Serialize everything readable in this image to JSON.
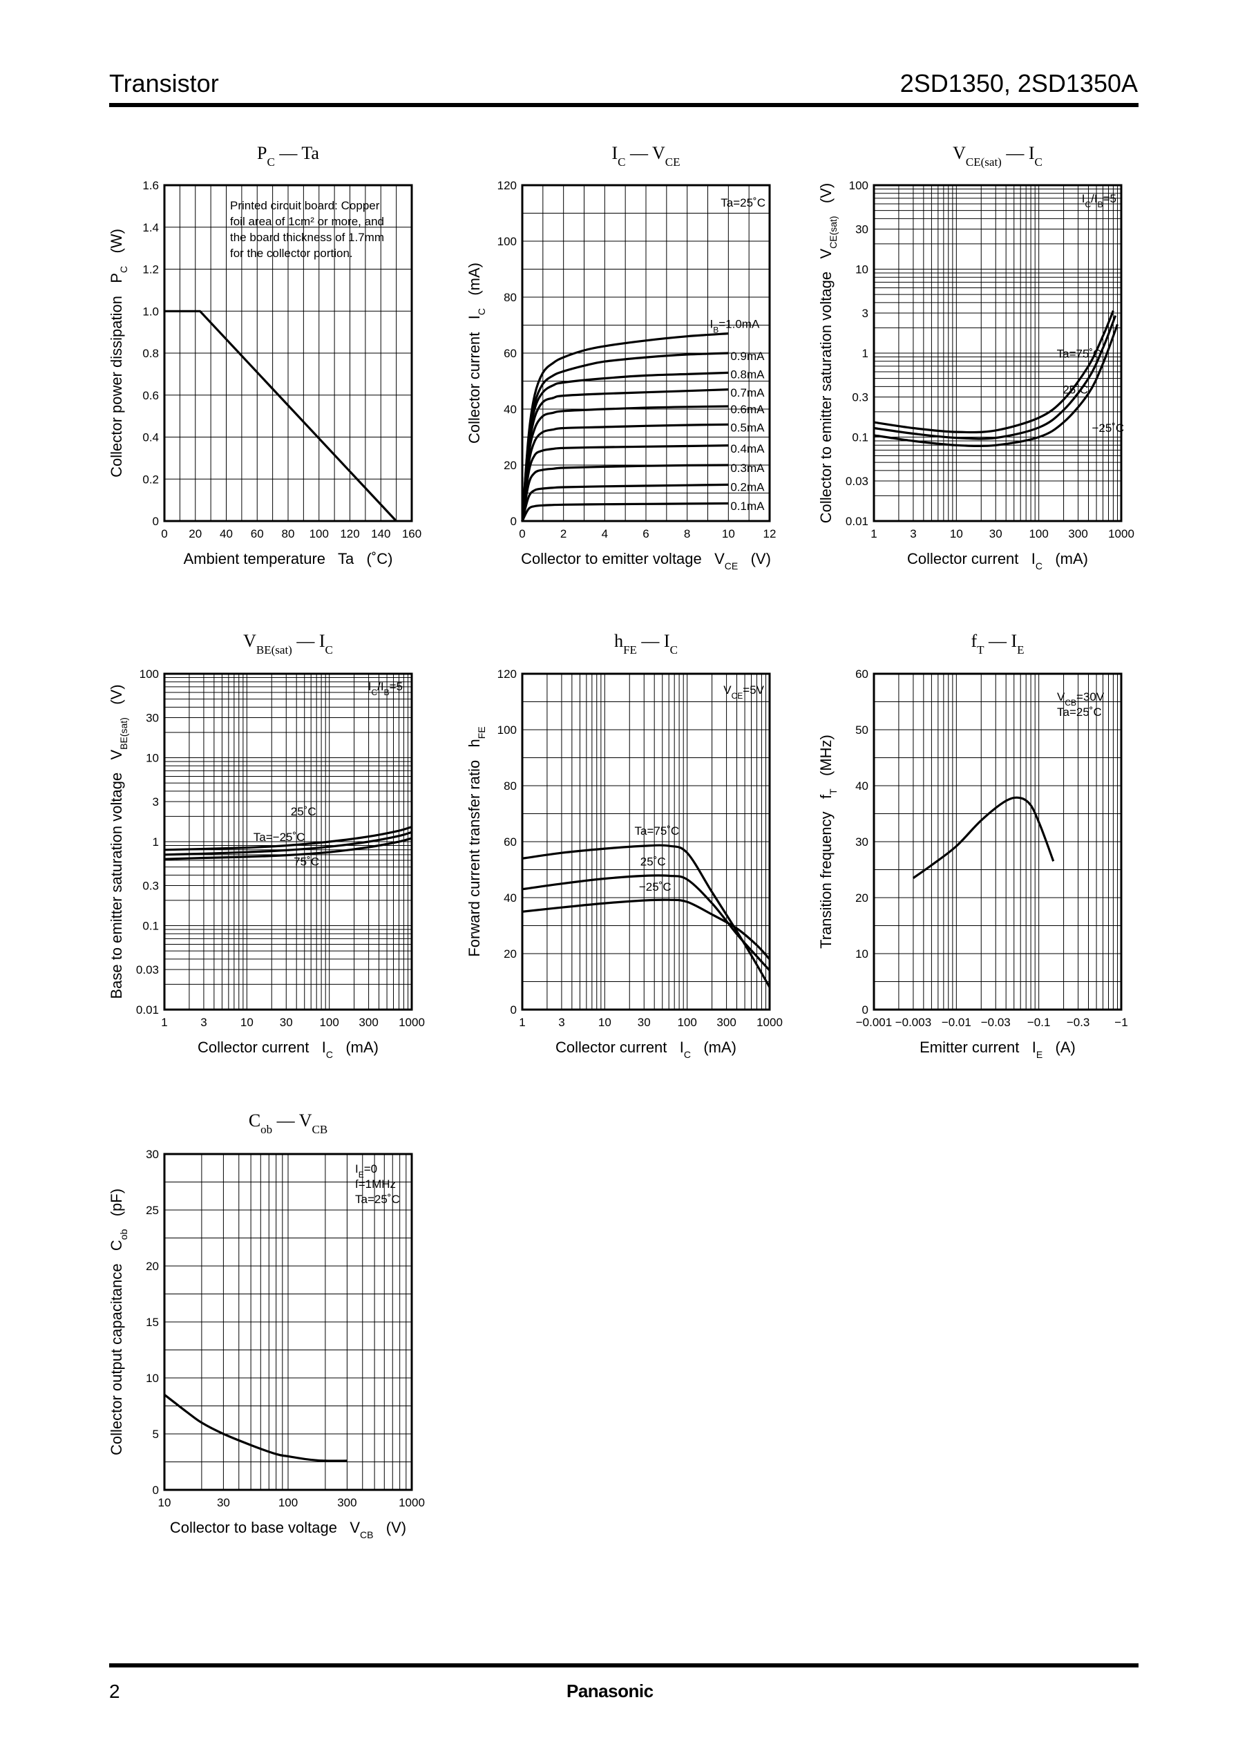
{
  "header": {
    "category": "Transistor",
    "part_numbers": "2SD1350, 2SD1350A"
  },
  "footer": {
    "page_number": "2",
    "brand": "Panasonic"
  },
  "chart_data": [
    {
      "id": "pc-ta",
      "type": "line",
      "title": "P_C — Ta",
      "xlabel": "Ambient temperature   Ta   (˚C)",
      "ylabel": "Collector power dissipation   P_C   (W)",
      "xscale": "linear",
      "yscale": "linear",
      "xlim": [
        0,
        160
      ],
      "ylim": [
        0,
        1.6
      ],
      "xticks": [
        0,
        20,
        40,
        60,
        80,
        100,
        120,
        140,
        160
      ],
      "yticks": [
        0,
        0.2,
        0.4,
        0.6,
        0.8,
        1.0,
        1.2,
        1.4,
        1.6
      ],
      "xtick_labels": [
        "0",
        "20",
        "40",
        "60",
        "80",
        "100",
        "120",
        "140",
        "160"
      ],
      "ytick_labels": [
        "0",
        "0.2",
        "0.4",
        "0.6",
        "0.8",
        "1.0",
        "1.2",
        "1.4",
        "1.6"
      ],
      "xgrid": [
        10,
        20,
        30,
        40,
        50,
        60,
        70,
        80,
        90,
        100,
        110,
        120,
        130,
        140,
        150
      ],
      "ygrid": [
        0.2,
        0.4,
        0.6,
        0.8,
        1.0,
        1.2,
        1.4
      ],
      "note": [
        "Printed circuit board: Copper",
        "foil area of 1cm² or more, and",
        "the board thickness of 1.7mm",
        "for the collector portion."
      ],
      "series": [
        {
          "name": "P_C",
          "x": [
            0,
            23,
            150
          ],
          "y": [
            1.0,
            1.0,
            0
          ]
        }
      ],
      "labels": []
    },
    {
      "id": "ic-vce",
      "type": "line",
      "title": "I_C — V_CE",
      "xlabel": "Collector to emitter voltage   V_CE   (V)",
      "ylabel": "Collector current   I_C   (mA)",
      "xscale": "linear",
      "yscale": "linear",
      "xlim": [
        0,
        12
      ],
      "ylim": [
        0,
        120
      ],
      "xticks": [
        0,
        2,
        4,
        6,
        8,
        10,
        12
      ],
      "yticks": [
        0,
        20,
        40,
        60,
        80,
        100,
        120
      ],
      "xtick_labels": [
        "0",
        "2",
        "4",
        "6",
        "8",
        "10",
        "12"
      ],
      "ytick_labels": [
        "0",
        "20",
        "40",
        "60",
        "80",
        "100",
        "120"
      ],
      "xgrid": [
        1,
        2,
        3,
        4,
        5,
        6,
        7,
        8,
        9,
        10,
        11
      ],
      "ygrid": [
        10,
        20,
        30,
        40,
        50,
        60,
        70,
        80,
        90,
        100,
        110
      ],
      "note": [
        "Ta=25˚C"
      ],
      "series": [
        {
          "name": "I_B=1.0mA",
          "x": [
            0,
            0.3,
            0.6,
            1.0,
            1.5,
            2,
            3,
            4,
            6,
            8,
            10
          ],
          "y": [
            0,
            30,
            45,
            53,
            56.5,
            58.5,
            61,
            62.5,
            64.5,
            66,
            67
          ]
        },
        {
          "name": "0.9mA",
          "x": [
            0,
            0.3,
            0.6,
            1.0,
            1.5,
            2,
            3,
            4,
            6,
            8,
            10
          ],
          "y": [
            0,
            29,
            42,
            49,
            52,
            53.5,
            55.5,
            57,
            58.5,
            59.5,
            60
          ]
        },
        {
          "name": "0.8mA",
          "x": [
            0,
            0.3,
            0.6,
            1.0,
            1.5,
            2,
            4,
            6,
            8,
            10
          ],
          "y": [
            0,
            27,
            40,
            46,
            48.5,
            49.5,
            51,
            52,
            52.5,
            53
          ]
        },
        {
          "name": "0.7mA",
          "x": [
            0,
            0.3,
            0.6,
            1.0,
            1.5,
            2,
            4,
            6,
            8,
            10
          ],
          "y": [
            0,
            25,
            37,
            42.5,
            44,
            44.8,
            45.5,
            46,
            46.5,
            47
          ]
        },
        {
          "name": "0.6mA",
          "x": [
            0,
            0.3,
            0.6,
            1.0,
            1.5,
            2,
            4,
            6,
            8,
            10
          ],
          "y": [
            0,
            23,
            33,
            37.5,
            38.7,
            39.3,
            40,
            40.5,
            40.8,
            41
          ]
        },
        {
          "name": "0.5mA",
          "x": [
            0,
            0.3,
            0.6,
            1.0,
            1.5,
            2,
            4,
            6,
            8,
            10
          ],
          "y": [
            0,
            20,
            28.5,
            31.8,
            32.7,
            33.2,
            33.6,
            34,
            34.3,
            34.5
          ]
        },
        {
          "name": "0.4mA",
          "x": [
            0,
            0.3,
            0.6,
            1.0,
            1.5,
            2,
            4,
            6,
            8,
            10
          ],
          "y": [
            0,
            17,
            23.5,
            25.2,
            25.8,
            26.1,
            26.4,
            26.6,
            26.8,
            27
          ]
        },
        {
          "name": "0.3mA",
          "x": [
            0,
            0.3,
            0.6,
            1.0,
            1.5,
            2,
            4,
            6,
            8,
            10
          ],
          "y": [
            0,
            13,
            17.2,
            18.3,
            18.7,
            19,
            19.4,
            19.7,
            19.9,
            20
          ]
        },
        {
          "name": "0.2mA",
          "x": [
            0,
            0.3,
            0.6,
            1.0,
            1.5,
            2,
            4,
            6,
            8,
            10
          ],
          "y": [
            0,
            8.5,
            11,
            11.6,
            11.9,
            12.1,
            12.4,
            12.6,
            12.8,
            13
          ]
        },
        {
          "name": "0.1mA",
          "x": [
            0,
            0.3,
            0.6,
            1.0,
            1.5,
            2,
            4,
            6,
            8,
            10
          ],
          "y": [
            0,
            4.3,
            5.3,
            5.6,
            5.75,
            5.85,
            6,
            6.1,
            6.2,
            6.3
          ]
        }
      ],
      "labels": [
        {
          "text": "I_B=1.0mA",
          "x": 9.1,
          "y": 69
        },
        {
          "text": "0.9mA",
          "x": 10.1,
          "y": 57.5
        },
        {
          "text": "0.8mA",
          "x": 10.1,
          "y": 51
        },
        {
          "text": "0.7mA",
          "x": 10.1,
          "y": 44.5
        },
        {
          "text": "0.6mA",
          "x": 10.1,
          "y": 38.5
        },
        {
          "text": "0.5mA",
          "x": 10.1,
          "y": 32
        },
        {
          "text": "0.4mA",
          "x": 10.1,
          "y": 24.5
        },
        {
          "text": "0.3mA",
          "x": 10.1,
          "y": 17.5
        },
        {
          "text": "0.2mA",
          "x": 10.1,
          "y": 10.8
        },
        {
          "text": "0.1mA",
          "x": 10.1,
          "y": 4
        }
      ]
    },
    {
      "id": "vcesat-ic",
      "type": "line",
      "title": "V_CE(sat) — I_C",
      "xlabel": "Collector current   I_C   (mA)",
      "ylabel": "Collector to emitter saturation voltage   V_CE(sat)   (V)",
      "xscale": "log",
      "yscale": "log",
      "xlim": [
        1,
        1000
      ],
      "ylim": [
        0.01,
        100
      ],
      "xticks": [
        1,
        3,
        10,
        30,
        100,
        300,
        1000
      ],
      "yticks": [
        0.01,
        0.03,
        0.1,
        0.3,
        1,
        3,
        10,
        30,
        100
      ],
      "xtick_labels": [
        "1",
        "3",
        "10",
        "30",
        "100",
        "300",
        "1000"
      ],
      "ytick_labels": [
        "0.01",
        "0.03",
        "0.1",
        "0.3",
        "1",
        "3",
        "10",
        "30",
        "100"
      ],
      "xgrid": "log-minor",
      "ygrid": "log-minor",
      "note": [
        "I_C/I_B=5"
      ],
      "series": [
        {
          "name": "Ta=75˚C",
          "x": [
            1,
            3,
            10,
            30,
            100,
            200,
            400,
            600,
            800
          ],
          "y": [
            0.15,
            0.128,
            0.115,
            0.12,
            0.17,
            0.28,
            0.7,
            1.6,
            3.2
          ]
        },
        {
          "name": "25˚C",
          "x": [
            1,
            3,
            10,
            30,
            100,
            200,
            400,
            600,
            850
          ],
          "y": [
            0.128,
            0.11,
            0.098,
            0.098,
            0.13,
            0.21,
            0.5,
            1.15,
            2.8
          ]
        },
        {
          "name": "−25˚C",
          "x": [
            1,
            3,
            10,
            30,
            100,
            200,
            400,
            600,
            900
          ],
          "y": [
            0.105,
            0.09,
            0.08,
            0.08,
            0.1,
            0.15,
            0.33,
            0.75,
            2.2
          ]
        }
      ],
      "labels": [
        {
          "text": "Ta=75˚C",
          "x": 165,
          "y": 0.88
        },
        {
          "text": "25˚C",
          "x": 195,
          "y": 0.33
        },
        {
          "text": "−25˚C",
          "x": 440,
          "y": 0.115
        }
      ]
    },
    {
      "id": "vbesat-ic",
      "type": "line",
      "title": "V_BE(sat) — I_C",
      "xlabel": "Collector current   I_C   (mA)",
      "ylabel": "Base to emitter saturation voltage   V_BE(sat)   (V)",
      "xscale": "log",
      "yscale": "log",
      "xlim": [
        1,
        1000
      ],
      "ylim": [
        0.01,
        100
      ],
      "xticks": [
        1,
        3,
        10,
        30,
        100,
        300,
        1000
      ],
      "yticks": [
        0.01,
        0.03,
        0.1,
        0.3,
        1,
        3,
        10,
        30,
        100
      ],
      "xtick_labels": [
        "1",
        "3",
        "10",
        "30",
        "100",
        "300",
        "1000"
      ],
      "ytick_labels": [
        "0.01",
        "0.03",
        "0.1",
        "0.3",
        "1",
        "3",
        "10",
        "30",
        "100"
      ],
      "xgrid": "log-minor",
      "ygrid": "log-minor",
      "note": [
        "I_C/I_B=5"
      ],
      "series": [
        {
          "name": "Ta=−25˚C",
          "x": [
            1,
            3,
            10,
            30,
            100,
            300,
            700,
            1000
          ],
          "y": [
            0.8,
            0.82,
            0.85,
            0.9,
            1.0,
            1.15,
            1.35,
            1.5
          ]
        },
        {
          "name": "25˚C",
          "x": [
            1,
            3,
            10,
            30,
            100,
            300,
            700,
            1000
          ],
          "y": [
            0.7,
            0.72,
            0.75,
            0.79,
            0.87,
            1.0,
            1.17,
            1.3
          ]
        },
        {
          "name": "75˚C",
          "x": [
            1,
            3,
            10,
            30,
            100,
            300,
            700,
            1000
          ],
          "y": [
            0.62,
            0.64,
            0.66,
            0.69,
            0.75,
            0.86,
            1.0,
            1.1
          ]
        }
      ],
      "labels": [
        {
          "text": "25˚C",
          "x": 34,
          "y": 2.05
        },
        {
          "text": "Ta=−25˚C",
          "x": 12,
          "y": 1.02
        },
        {
          "text": "75˚C",
          "x": 37,
          "y": 0.52
        }
      ]
    },
    {
      "id": "hfe-ic",
      "type": "line",
      "title": "h_FE — I_C",
      "xlabel": "Collector current   I_C   (mA)",
      "ylabel": "Forward current transfer ratio   h_FE",
      "xscale": "log",
      "yscale": "linear",
      "xlim": [
        1,
        1000
      ],
      "ylim": [
        0,
        120
      ],
      "xticks": [
        1,
        3,
        10,
        30,
        100,
        300,
        1000
      ],
      "yticks": [
        0,
        20,
        40,
        60,
        80,
        100,
        120
      ],
      "xtick_labels": [
        "1",
        "3",
        "10",
        "30",
        "100",
        "300",
        "1000"
      ],
      "ytick_labels": [
        "0",
        "20",
        "40",
        "60",
        "80",
        "100",
        "120"
      ],
      "xgrid": "log-minor",
      "ygrid": [
        10,
        20,
        30,
        40,
        50,
        60,
        70,
        80,
        90,
        100,
        110
      ],
      "note": [
        "V_CE=5V"
      ],
      "series": [
        {
          "name": "Ta=75˚C",
          "x": [
            1,
            3,
            10,
            30,
            60,
            100,
            200,
            400,
            700,
            1000
          ],
          "y": [
            54,
            56,
            57.5,
            58.5,
            58.5,
            56,
            42,
            28,
            16,
            8
          ]
        },
        {
          "name": "25˚C",
          "x": [
            1,
            3,
            10,
            30,
            60,
            100,
            200,
            400,
            700,
            1000
          ],
          "y": [
            43,
            45,
            46.8,
            47.8,
            47.8,
            46.5,
            38,
            27,
            19,
            14
          ]
        },
        {
          "name": "−25˚C",
          "x": [
            1,
            3,
            10,
            30,
            60,
            100,
            200,
            400,
            700,
            1000
          ],
          "y": [
            35,
            36.5,
            38,
            39,
            39.2,
            38.5,
            34,
            29,
            23,
            18
          ]
        }
      ],
      "labels": [
        {
          "text": "Ta=75˚C",
          "x": 23,
          "y": 62.5
        },
        {
          "text": "25˚C",
          "x": 27,
          "y": 51.5
        },
        {
          "text": "−25˚C",
          "x": 26,
          "y": 42.5
        }
      ]
    },
    {
      "id": "ft-ie",
      "type": "line",
      "title": "f_T — I_E",
      "xlabel": "Emitter current   I_E   (A)",
      "ylabel": "Transition frequency   f_T   (MHz)",
      "xscale": "log",
      "yscale": "linear",
      "xlim": [
        -0.001,
        -1
      ],
      "ylim": [
        0,
        60
      ],
      "xticks": [
        -0.001,
        -0.003,
        -0.01,
        -0.03,
        -0.1,
        -0.3,
        -1
      ],
      "yticks": [
        0,
        10,
        20,
        30,
        40,
        50,
        60
      ],
      "xtick_labels": [
        "−0.001",
        "−0.003",
        "−0.01",
        "−0.03",
        "−0.1",
        "−0.3",
        "−1"
      ],
      "ytick_labels": [
        "0",
        "10",
        "20",
        "30",
        "40",
        "50",
        "60"
      ],
      "xgrid": "log-minor",
      "ygrid": [
        5,
        10,
        15,
        20,
        25,
        30,
        35,
        40,
        45,
        50,
        55
      ],
      "note": [
        "V_CB=30V",
        "Ta=25˚C"
      ],
      "series": [
        {
          "name": "f_T",
          "x": [
            -0.003,
            -0.005,
            -0.01,
            -0.02,
            -0.04,
            -0.06,
            -0.08,
            -0.1,
            -0.12,
            -0.15
          ],
          "y": [
            23.5,
            25.8,
            29.2,
            33.8,
            37.3,
            37.8,
            36.5,
            33.5,
            30.5,
            26.5
          ]
        }
      ],
      "labels": []
    },
    {
      "id": "cob-vcb",
      "type": "line",
      "title": "C_ob — V_CB",
      "xlabel": "Collector to base voltage   V_CB   (V)",
      "ylabel": "Collector output capacitance   C_ob   (pF)",
      "xscale": "log",
      "yscale": "linear",
      "xlim": [
        10,
        1000
      ],
      "ylim": [
        0,
        30
      ],
      "xticks": [
        10,
        30,
        100,
        300,
        1000
      ],
      "yticks": [
        0,
        5,
        10,
        15,
        20,
        25,
        30
      ],
      "xtick_labels": [
        "10",
        "30",
        "100",
        "300",
        "1000"
      ],
      "ytick_labels": [
        "0",
        "5",
        "10",
        "15",
        "20",
        "25",
        "30"
      ],
      "xgrid": "log-minor",
      "ygrid": [
        2.5,
        5,
        7.5,
        10,
        12.5,
        15,
        17.5,
        20,
        22.5,
        25,
        27.5
      ],
      "note": [
        "I_E=0",
        "f=1MHz",
        "Ta=25˚C"
      ],
      "series": [
        {
          "name": "C_ob",
          "x": [
            10,
            15,
            20,
            30,
            50,
            80,
            100,
            150,
            200,
            300
          ],
          "y": [
            8.5,
            7.0,
            6.0,
            5.0,
            4.0,
            3.2,
            3.0,
            2.7,
            2.6,
            2.6
          ]
        }
      ],
      "labels": []
    }
  ]
}
